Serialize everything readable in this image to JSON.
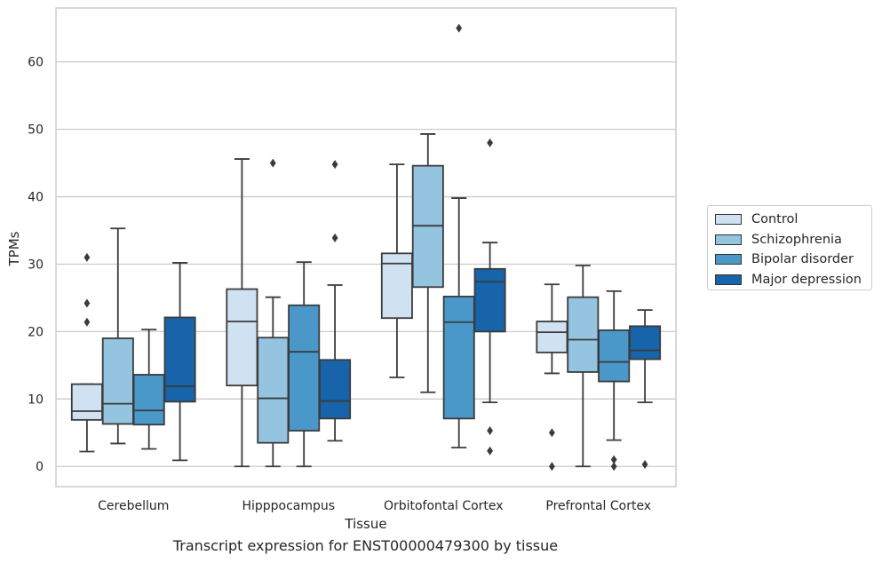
{
  "chart_data": {
    "type": "box",
    "caption": "Transcript expression for ENST00000479300 by tissue",
    "xlabel": "Tissue",
    "ylabel": "TPMs",
    "ylim": [
      -3,
      68
    ],
    "yticks": [
      0,
      10,
      20,
      30,
      40,
      50,
      60
    ],
    "grid": "horizontal",
    "legend_position": "right",
    "categories": [
      "Cerebellum",
      "Hipppocampus",
      "Orbitofontal Cortex",
      "Prefrontal Cortex"
    ],
    "series": [
      {
        "name": "Control",
        "color": "#d0e1f2",
        "boxes": [
          {
            "whisker_low": 2.2,
            "q1": 6.9,
            "median": 8.2,
            "q3": 12.2,
            "whisker_high": 12.2,
            "outliers": [
              21.4,
              24.2,
              31.0
            ]
          },
          {
            "whisker_low": 0.0,
            "q1": 12.0,
            "median": 21.5,
            "q3": 26.3,
            "whisker_high": 45.6,
            "outliers": []
          },
          {
            "whisker_low": 13.2,
            "q1": 22.0,
            "median": 30.1,
            "q3": 31.6,
            "whisker_high": 44.8,
            "outliers": []
          },
          {
            "whisker_low": 13.8,
            "q1": 16.9,
            "median": 19.9,
            "q3": 21.5,
            "whisker_high": 27.0,
            "outliers": [
              0.0,
              5.0
            ]
          }
        ]
      },
      {
        "name": "Schizophrenia",
        "color": "#94c4df",
        "boxes": [
          {
            "whisker_low": 3.4,
            "q1": 6.3,
            "median": 9.3,
            "q3": 19.0,
            "whisker_high": 35.3,
            "outliers": []
          },
          {
            "whisker_low": 0.0,
            "q1": 3.5,
            "median": 10.1,
            "q3": 19.1,
            "whisker_high": 25.1,
            "outliers": [
              45.0
            ]
          },
          {
            "whisker_low": 11.0,
            "q1": 26.6,
            "median": 35.7,
            "q3": 44.6,
            "whisker_high": 49.3,
            "outliers": []
          },
          {
            "whisker_low": 0.0,
            "q1": 14.0,
            "median": 18.8,
            "q3": 25.1,
            "whisker_high": 29.8,
            "outliers": []
          }
        ]
      },
      {
        "name": "Bipolar disorder",
        "color": "#4a98c9",
        "boxes": [
          {
            "whisker_low": 2.6,
            "q1": 6.2,
            "median": 8.3,
            "q3": 13.6,
            "whisker_high": 20.3,
            "outliers": []
          },
          {
            "whisker_low": 0.0,
            "q1": 5.3,
            "median": 17.0,
            "q3": 23.9,
            "whisker_high": 30.3,
            "outliers": []
          },
          {
            "whisker_low": 2.8,
            "q1": 7.1,
            "median": 21.4,
            "q3": 25.2,
            "whisker_high": 39.8,
            "outliers": [
              65.0
            ]
          },
          {
            "whisker_low": 3.9,
            "q1": 12.6,
            "median": 15.5,
            "q3": 20.2,
            "whisker_high": 26.0,
            "outliers": [
              0.0,
              1.0
            ]
          }
        ]
      },
      {
        "name": "Major depression",
        "color": "#1764ab",
        "boxes": [
          {
            "whisker_low": 0.9,
            "q1": 9.6,
            "median": 11.9,
            "q3": 22.1,
            "whisker_high": 30.2,
            "outliers": []
          },
          {
            "whisker_low": 3.8,
            "q1": 7.1,
            "median": 9.7,
            "q3": 15.8,
            "whisker_high": 26.9,
            "outliers": [
              33.9,
              44.8
            ]
          },
          {
            "whisker_low": 9.5,
            "q1": 20.0,
            "median": 27.4,
            "q3": 29.3,
            "whisker_high": 33.2,
            "outliers": [
              2.3,
              5.3,
              48.0
            ]
          },
          {
            "whisker_low": 9.5,
            "q1": 15.9,
            "median": 17.2,
            "q3": 20.8,
            "whisker_high": 23.2,
            "outliers": [
              0.3
            ]
          }
        ]
      }
    ]
  }
}
